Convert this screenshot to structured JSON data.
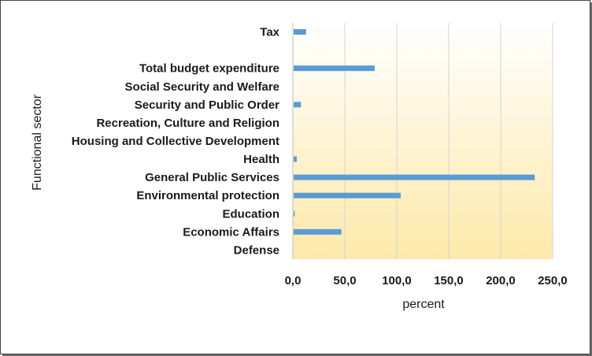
{
  "chart_data": {
    "type": "bar",
    "orientation": "horizontal",
    "xlabel": "percent",
    "ylabel": "Functional sector",
    "xlim": [
      0,
      250
    ],
    "xticks": [
      "0,0",
      "50,0",
      "100,0",
      "150,0",
      "200,0",
      "250,0"
    ],
    "grid": "vertical",
    "legend": "none",
    "bar_color": "#5b9bd5",
    "background_gradient": [
      "#ffffff",
      "#fde9a9"
    ],
    "categories": [
      "Tax",
      "",
      "Total budget expenditure",
      "Social Security and Welfare",
      "Security and Public Order",
      "Recreation, Culture and Religion",
      "Housing and Collective Development",
      "Health",
      "General Public Services",
      "Environmental protection",
      "Education",
      "Economic Affairs",
      "Defense"
    ],
    "values": [
      12,
      null,
      78,
      0,
      7,
      0,
      0,
      3,
      232,
      103,
      1,
      46,
      0
    ]
  }
}
